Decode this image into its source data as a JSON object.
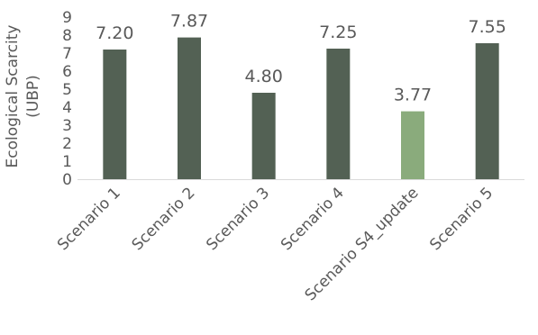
{
  "chart_data": {
    "type": "bar",
    "title": "",
    "xlabel": "",
    "ylabel_line1": "Ecological Scarcity",
    "ylabel_line2": "(UBP)",
    "ylim": [
      0,
      9
    ],
    "yticks": [
      0,
      1,
      2,
      3,
      4,
      5,
      6,
      7,
      8,
      9
    ],
    "grid": false,
    "legend": "none",
    "categories": [
      "Scenario 1",
      "Scenario 2",
      "Scenario 3",
      "Scenario 4",
      "Scenario S4_update",
      "Scenario 5"
    ],
    "values": [
      7.2,
      7.87,
      4.8,
      7.25,
      3.77,
      7.55
    ],
    "data_labels": [
      "7.20",
      "7.87",
      "4.80",
      "7.25",
      "3.77",
      "7.55"
    ],
    "colors": [
      "#536154",
      "#536154",
      "#536154",
      "#536154",
      "#8aab7c",
      "#536154"
    ],
    "axis_color": "#d9d9d9",
    "text_color": "#595959"
  }
}
